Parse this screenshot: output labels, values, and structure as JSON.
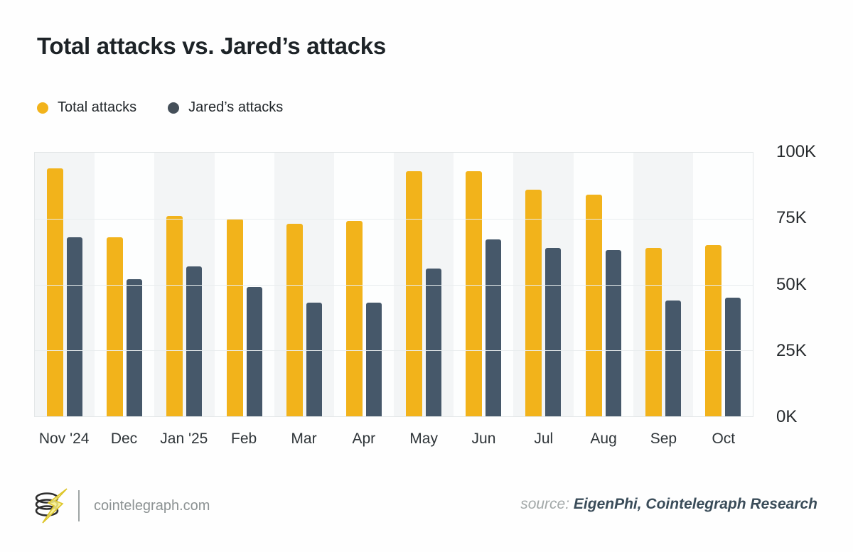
{
  "title": "Total attacks vs. Jared’s attacks",
  "colors": {
    "total_bar": "#F2B31B",
    "jared_bar": "#46586A",
    "legend_total_dot": "#F2B31B",
    "legend_jared_dot": "#454F59",
    "band_shaded": "#f3f5f6",
    "gridline": "#e9edee"
  },
  "legend": {
    "items": [
      {
        "label": "Total attacks",
        "color_key": "legend_total_dot"
      },
      {
        "label": "Jared’s attacks",
        "color_key": "legend_jared_dot"
      }
    ]
  },
  "chart_data": {
    "type": "bar",
    "title": "Total attacks vs. Jared’s attacks",
    "categories": [
      "Nov '24",
      "Dec",
      "Jan '25",
      "Feb",
      "Mar",
      "Apr",
      "May",
      "Jun",
      "Jul",
      "Aug",
      "Sep",
      "Oct"
    ],
    "series": [
      {
        "name": "Total attacks",
        "color": "#F2B31B",
        "values": [
          94000,
          68000,
          76000,
          75000,
          73000,
          74000,
          93000,
          93000,
          86000,
          84000,
          64000,
          65000
        ]
      },
      {
        "name": "Jared’s attacks",
        "color": "#46586A",
        "values": [
          68000,
          52000,
          57000,
          49000,
          43000,
          43000,
          56000,
          67000,
          64000,
          63000,
          44000,
          45000
        ]
      }
    ],
    "xlabel": "",
    "ylabel": "",
    "ylim": [
      0,
      100000
    ],
    "y_ticks": [
      "100K",
      "75K",
      "50K",
      "25K",
      "0K"
    ],
    "grid": "horizontal",
    "legend_position": "top-left",
    "plot_background": "alternating vertical column bands"
  },
  "footer": {
    "logo_name": "cointelegraph-coins-lightning-logo",
    "site": "cointelegraph.com",
    "source_label": "source:",
    "source_value": "EigenPhi, Cointelegraph Research"
  }
}
